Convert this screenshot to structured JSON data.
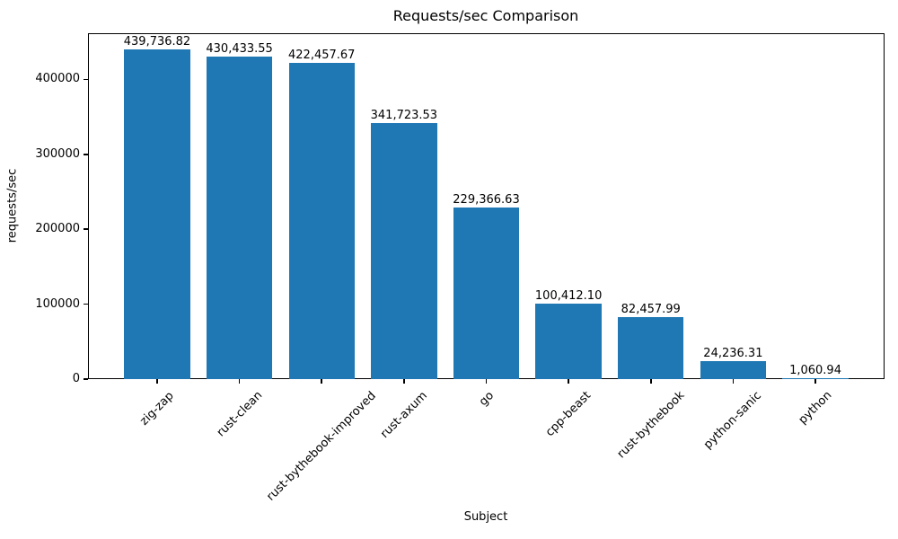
{
  "chart_data": {
    "type": "bar",
    "title": "Requests/sec Comparison",
    "xlabel": "Subject",
    "ylabel": "requests/sec",
    "categories": [
      "zig-zap",
      "rust-clean",
      "rust-bythebook-improved",
      "rust-axum",
      "go",
      "cpp-beast",
      "rust-bythebook",
      "python-sanic",
      "python"
    ],
    "values": [
      439736.82,
      430433.55,
      422457.67,
      341723.53,
      229366.63,
      100412.1,
      82457.99,
      24236.31,
      1060.94
    ],
    "value_labels": [
      "439,736.82",
      "430,433.55",
      "422,457.67",
      "341,723.53",
      "229,366.63",
      "100,412.10",
      "82,457.99",
      "24,236.31",
      "1,060.94"
    ],
    "yticks": [
      0,
      100000,
      200000,
      300000,
      400000
    ],
    "ytick_labels": [
      "0",
      "100000",
      "200000",
      "300000",
      "400000"
    ],
    "ylim": [
      0,
      461724
    ],
    "bar_width_fraction": 0.8,
    "bar_color": "#1f77b4",
    "axis_color": "#000000",
    "text_color": "#000000",
    "grid": false,
    "legend": null
  }
}
